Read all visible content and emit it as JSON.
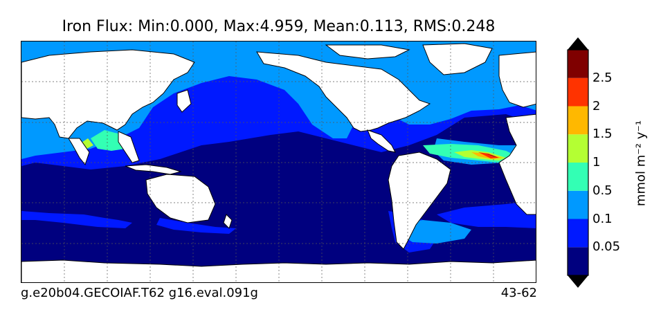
{
  "title": "Iron Flux: Min:0.000, Max:4.959, Mean:0.113, RMS:0.248",
  "footer": {
    "case": "g.e20b04.GECOIAF.T62 g16.eval.091g",
    "years": "43-62"
  },
  "colorbar": {
    "unit_label": "mmol m⁻² y⁻¹",
    "ticks": [
      "0.05",
      "0.1",
      "0.5",
      "1",
      "1.5",
      "2",
      "2.5"
    ],
    "levels": [
      0,
      0.05,
      0.1,
      0.5,
      1,
      1.5,
      2,
      2.5,
      3
    ],
    "colors": [
      "#00007f",
      "#0019ff",
      "#0099ff",
      "#33ffb4",
      "#b4ff33",
      "#ffb800",
      "#ff3300",
      "#7f0000"
    ],
    "extend_colors": {
      "under": "#000000",
      "over": "#000000"
    }
  },
  "map": {
    "projection": "cylindrical, Pacific-centered",
    "land_color": "#ffffff",
    "ocean_background_color": "#00007f",
    "gridlines": "dotted",
    "field": "Iron Flux"
  }
}
